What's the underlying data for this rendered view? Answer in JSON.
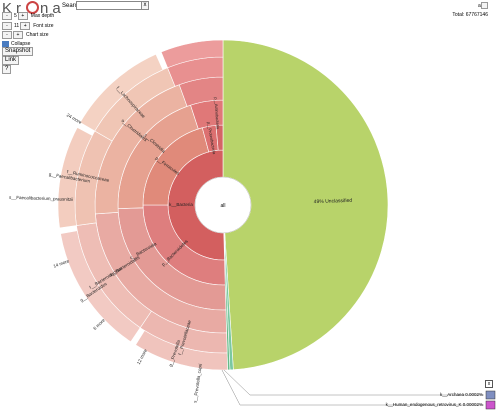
{
  "app": {
    "logo_left": "Kr",
    "logo_right": "na"
  },
  "search": {
    "label": "Search:",
    "value": "",
    "clear": "x"
  },
  "controls": {
    "depth": {
      "minus": "-",
      "value": "5",
      "plus": "+",
      "label": "Max depth"
    },
    "font": {
      "minus": "-",
      "value": "11",
      "plus": "+",
      "label": "Font size"
    },
    "chart": {
      "minus": "-",
      "plus": "+",
      "label": "Chart size"
    },
    "collapse_label": "Collapse",
    "snapshot": "Snapshot",
    "link": "Link",
    "help": "?"
  },
  "hud": {
    "all": "all",
    "total": "Total: 67767146"
  },
  "center_label": "all",
  "colors": {
    "unclassified": "#b8d36a",
    "bacteria": "#d86c6c",
    "archaea": "#7f8ec0",
    "human": "#cc55cc"
  },
  "unclassified": {
    "label": "49% Unclassified",
    "fraction": 0.49
  },
  "labels": {
    "bacteria": "k__Bacteria",
    "clostridia": "c__Clostridia",
    "clostridiales": "o__Clostridiales",
    "bacteroidia": "c__Bacteroidia",
    "bacteroidales": "o__Bacteroidales",
    "bacteroidaceae": "f__Bacteroidaceae",
    "prevotellaceae": "f__Prevotellaceae",
    "bacteroides": "g__Bacteroides",
    "prevotella": "g__Prevotella",
    "ruminococcaceae": "f__Ruminococcaceae",
    "lachnospiraceae": "f__Lachnospiraceae",
    "faecalibacterium": "g__Faecalibacterium",
    "f_prausnitzii": "s__Faecalibacterium_prausnitzii",
    "firmicutes": "p__Firmicutes",
    "bacteroidetes": "p__Bacteroidetes",
    "proteobacteria": "p__Proteobacteria",
    "actinobacteria": "p__Actinobacteria",
    "more24": "24 more",
    "more14": "14 more",
    "more6": "6 more",
    "more12": "12 more",
    "p_copri": "s__Prevotella_copri"
  },
  "key": {
    "archaea": "k__Archaea   0.0002%",
    "human": "k__Human_endogenous_retrovirus_K   0.00002%",
    "close": "x"
  }
}
